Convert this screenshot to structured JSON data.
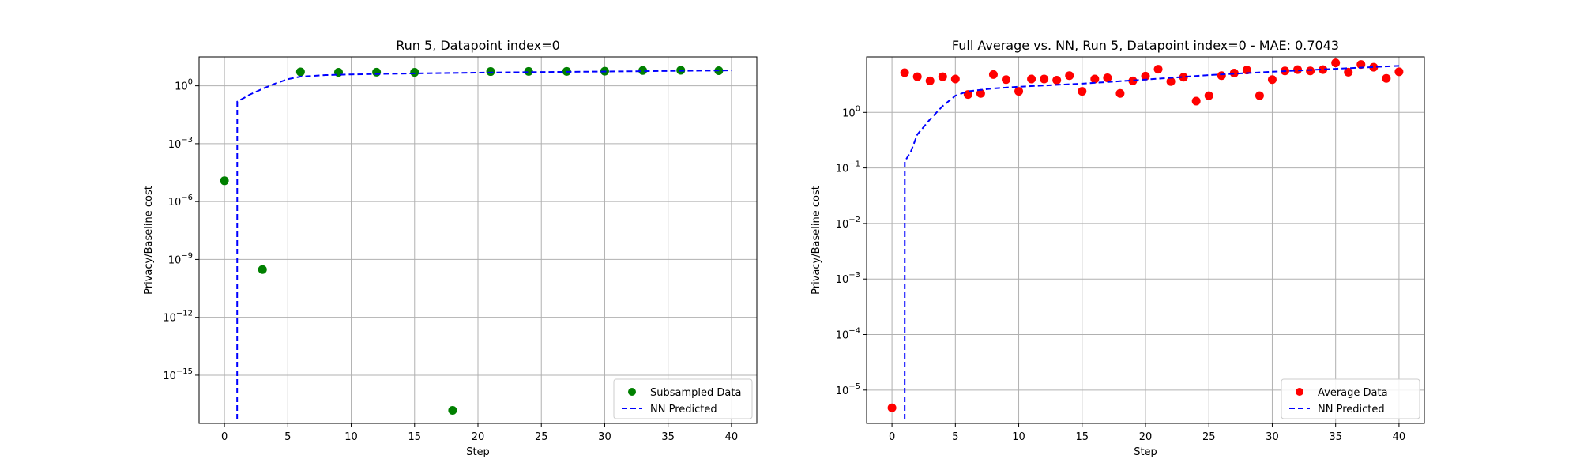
{
  "chart_data": [
    {
      "type": "scatter",
      "title": "Run 5, Datapoint index=0",
      "xlabel": "Step",
      "ylabel": "Privacy/Baseline cost",
      "xlim": [
        -2,
        42
      ],
      "ylim_log10": [
        -17.5,
        1.5
      ],
      "yscale": "log",
      "grid": true,
      "legend_position": "lower-right",
      "x_ticks": [
        0,
        5,
        10,
        15,
        20,
        25,
        30,
        35,
        40
      ],
      "y_ticks": [
        {
          "exp": 0,
          "label": "10",
          "sup": "0"
        },
        {
          "exp": -3,
          "label": "10",
          "sup": "−3"
        },
        {
          "exp": -6,
          "label": "10",
          "sup": "−6"
        },
        {
          "exp": -9,
          "label": "10",
          "sup": "−9"
        },
        {
          "exp": -12,
          "label": "10",
          "sup": "−12"
        },
        {
          "exp": -15,
          "label": "10",
          "sup": "−15"
        }
      ],
      "series": [
        {
          "name": "Subsampled Data",
          "kind": "scatter",
          "color": "#008000",
          "x": [
            0,
            3,
            6,
            9,
            12,
            15,
            18,
            21,
            24,
            27,
            30,
            33,
            36,
            39
          ],
          "y": [
            1.2e-05,
            3e-10,
            5.3,
            5.0,
            5.1,
            5.0,
            1.5e-17,
            5.5,
            5.6,
            5.6,
            5.7,
            6.2,
            6.4,
            6.1
          ]
        },
        {
          "name": "NN Predicted",
          "kind": "line",
          "dash": true,
          "color": "#0000ff",
          "x": [
            1,
            1.01,
            2,
            3,
            4,
            5,
            6,
            8,
            10,
            15,
            20,
            25,
            30,
            35,
            40
          ],
          "y": [
            1e-30,
            0.15,
            0.35,
            0.7,
            1.3,
            2.2,
            3.0,
            3.6,
            3.9,
            4.4,
            4.8,
            5.2,
            5.5,
            5.9,
            6.3
          ]
        }
      ]
    },
    {
      "type": "scatter",
      "title": "Full Average vs. NN, Run 5, Datapoint index=0 - MAE: 0.7043",
      "xlabel": "Step",
      "ylabel": "Privacy/Baseline cost",
      "xlim": [
        -2,
        42
      ],
      "ylim_log10": [
        -5.6,
        1.0
      ],
      "yscale": "log",
      "grid": true,
      "legend_position": "lower-right",
      "x_ticks": [
        0,
        5,
        10,
        15,
        20,
        25,
        30,
        35,
        40
      ],
      "y_ticks": [
        {
          "exp": 0,
          "label": "10",
          "sup": "0"
        },
        {
          "exp": -1,
          "label": "10",
          "sup": "−1"
        },
        {
          "exp": -2,
          "label": "10",
          "sup": "−2"
        },
        {
          "exp": -3,
          "label": "10",
          "sup": "−3"
        },
        {
          "exp": -4,
          "label": "10",
          "sup": "−4"
        },
        {
          "exp": -5,
          "label": "10",
          "sup": "−5"
        }
      ],
      "series": [
        {
          "name": "Average Data",
          "kind": "scatter",
          "color": "#ff0000",
          "x": [
            0,
            1,
            2,
            3,
            4,
            5,
            6,
            7,
            8,
            9,
            10,
            11,
            12,
            13,
            14,
            15,
            16,
            17,
            18,
            19,
            20,
            21,
            22,
            23,
            24,
            25,
            26,
            27,
            28,
            29,
            30,
            31,
            32,
            33,
            34,
            35,
            36,
            37,
            38,
            39,
            40
          ],
          "y": [
            4.8e-06,
            5.2,
            4.4,
            3.7,
            4.4,
            4.0,
            2.1,
            2.2,
            4.8,
            3.9,
            2.4,
            4.0,
            4.0,
            3.8,
            4.6,
            2.4,
            4.0,
            4.2,
            2.2,
            3.7,
            4.5,
            6.0,
            3.6,
            4.3,
            1.6,
            2.0,
            4.6,
            5.1,
            5.8,
            2.0,
            3.9,
            5.6,
            5.9,
            5.6,
            5.9,
            7.8,
            5.3,
            7.3,
            6.5,
            4.1,
            5.4
          ]
        },
        {
          "name": "NN Predicted",
          "kind": "line",
          "dash": true,
          "color": "#0000ff",
          "x": [
            1,
            1.01,
            1.5,
            2,
            3,
            4,
            5,
            6,
            8,
            10,
            15,
            20,
            25,
            30,
            35,
            40
          ],
          "y": [
            1e-08,
            0.13,
            0.2,
            0.4,
            0.75,
            1.3,
            2.0,
            2.4,
            2.7,
            2.9,
            3.3,
            3.9,
            4.7,
            5.4,
            6.1,
            6.9
          ]
        }
      ]
    }
  ]
}
